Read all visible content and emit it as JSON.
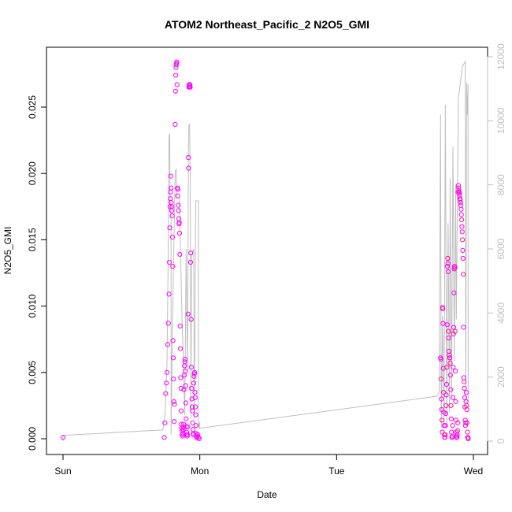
{
  "chart_data": {
    "type": "scatter",
    "title": "ATOM2 Northeast_Pacific_2 N2O5_GMI",
    "xlabel": "Date",
    "ylabel": "N2O5_GMI",
    "x_ticks": [
      "Sun",
      "Mon",
      "Tue",
      "Wed"
    ],
    "x_range_days": [
      0,
      3.1
    ],
    "ylim": [
      0,
      0.0295
    ],
    "y_ticks": [
      "0.000",
      "0.005",
      "0.010",
      "0.015",
      "0.020",
      "0.025"
    ],
    "secondary_y": {
      "label": "",
      "ylim": [
        0,
        12300
      ],
      "ticks": [
        "0",
        "2000",
        "4000",
        "6000",
        "8000",
        "10000",
        "12000"
      ],
      "color": "#bfbfbf"
    },
    "grid": false,
    "colors": {
      "points": "#ff00ff",
      "points_alt": "#ff1493",
      "line": "#bfbfbf"
    },
    "series": [
      {
        "marker": "open-circle",
        "axis": "left",
        "points": [
          [
            0.0,
            0.0001
          ],
          [
            0.74,
            0.0001
          ],
          [
            0.745,
            0.0012
          ],
          [
            0.75,
            0.0034
          ],
          [
            0.755,
            0.0042
          ],
          [
            0.76,
            0.005
          ],
          [
            0.765,
            0.0071
          ],
          [
            0.77,
            0.0087
          ],
          [
            0.775,
            0.0109
          ],
          [
            0.778,
            0.0133
          ],
          [
            0.78,
            0.0159
          ],
          [
            0.782,
            0.0175
          ],
          [
            0.784,
            0.0181
          ],
          [
            0.786,
            0.0186
          ],
          [
            0.788,
            0.0198
          ],
          [
            0.79,
            0.0189
          ],
          [
            0.792,
            0.0178
          ],
          [
            0.794,
            0.0172
          ],
          [
            0.796,
            0.0175
          ],
          [
            0.798,
            0.0168
          ],
          [
            0.8,
            0.0152
          ],
          [
            0.802,
            0.013
          ],
          [
            0.804,
            0.0074
          ],
          [
            0.806,
            0.0061
          ],
          [
            0.808,
            0.0045
          ],
          [
            0.81,
            0.0028
          ],
          [
            0.812,
            0.0013
          ],
          [
            0.815,
            0.0026
          ],
          [
            0.82,
            0.0237
          ],
          [
            0.822,
            0.0262
          ],
          [
            0.824,
            0.0274
          ],
          [
            0.826,
            0.028
          ],
          [
            0.828,
            0.0282
          ],
          [
            0.83,
            0.0283
          ],
          [
            0.832,
            0.0284
          ],
          [
            0.834,
            0.0267
          ],
          [
            0.836,
            0.0189
          ],
          [
            0.838,
            0.0183
          ],
          [
            0.84,
            0.0188
          ],
          [
            0.842,
            0.0176
          ],
          [
            0.844,
            0.0172
          ],
          [
            0.846,
            0.0166
          ],
          [
            0.848,
            0.0162
          ],
          [
            0.85,
            0.0163
          ],
          [
            0.852,
            0.0155
          ],
          [
            0.854,
            0.0139
          ],
          [
            0.856,
            0.0085
          ],
          [
            0.858,
            0.0068
          ],
          [
            0.86,
            0.0046
          ],
          [
            0.862,
            0.0038
          ],
          [
            0.864,
            0.0021
          ],
          [
            0.866,
            0.0011
          ],
          [
            0.868,
            0.0008
          ],
          [
            0.87,
            0.0006
          ],
          [
            0.872,
            0.0003
          ],
          [
            0.874,
            0.0002
          ],
          [
            0.876,
            0.0004
          ],
          [
            0.878,
            0.0007
          ],
          [
            0.88,
            0.0009
          ],
          [
            0.882,
            0.0011
          ],
          [
            0.884,
            0.0037
          ],
          [
            0.886,
            0.0048
          ],
          [
            0.888,
            0.0055
          ],
          [
            0.89,
            0.0058
          ],
          [
            0.892,
            0.006
          ],
          [
            0.894,
            0.0051
          ],
          [
            0.896,
            0.004
          ],
          [
            0.898,
            0.0027
          ],
          [
            0.9,
            0.0015
          ],
          [
            0.902,
            0.0009
          ],
          [
            0.904,
            0.0005
          ],
          [
            0.906,
            0.0003
          ],
          [
            0.908,
            0.0002
          ],
          [
            0.91,
            0.0003
          ],
          [
            0.912,
            0.0009
          ],
          [
            0.914,
            0.0094
          ],
          [
            0.916,
            0.0212
          ],
          [
            0.918,
            0.0204
          ],
          [
            0.92,
            0.0265
          ],
          [
            0.922,
            0.0267
          ],
          [
            0.924,
            0.0266
          ],
          [
            0.926,
            0.0265
          ],
          [
            0.928,
            0.0267
          ],
          [
            0.93,
            0.0265
          ],
          [
            0.932,
            0.0133
          ],
          [
            0.934,
            0.014
          ],
          [
            0.936,
            0.009
          ],
          [
            0.938,
            0.0054
          ],
          [
            0.94,
            0.0038
          ],
          [
            0.942,
            0.003
          ],
          [
            0.944,
            0.0024
          ],
          [
            0.946,
            0.0021
          ],
          [
            0.948,
            0.0012
          ],
          [
            0.95,
            0.0007
          ],
          [
            0.952,
            0.0004
          ],
          [
            0.954,
            0.0003
          ],
          [
            0.956,
            0.0042
          ],
          [
            0.958,
            0.0047
          ],
          [
            0.96,
            0.0049
          ],
          [
            0.962,
            0.005
          ],
          [
            0.964,
            0.0035
          ],
          [
            0.966,
            0.0031
          ],
          [
            0.968,
            0.0024
          ],
          [
            0.97,
            0.0018
          ],
          [
            0.972,
            0.001
          ],
          [
            0.974,
            0.0004
          ],
          [
            0.976,
            0.0001
          ],
          [
            0.978,
            0.0001
          ],
          [
            0.98,
            0.0002
          ],
          [
            0.985,
            0.0003
          ],
          [
            0.99,
            0.0001
          ],
          [
            0.995,
            0.0
          ],
          [
            2.76,
            0.0061
          ],
          [
            2.762,
            0.006
          ],
          [
            2.764,
            0.0045
          ],
          [
            2.766,
            0.003
          ],
          [
            2.768,
            0.0022
          ],
          [
            2.77,
            0.0014
          ],
          [
            2.772,
            0.0005
          ],
          [
            2.774,
            0.0099
          ],
          [
            2.776,
            0.0098
          ],
          [
            2.778,
            0.0087
          ],
          [
            2.78,
            0.0053
          ],
          [
            2.782,
            0.0035
          ],
          [
            2.784,
            0.002
          ],
          [
            2.786,
            0.001
          ],
          [
            2.788,
            0.0003
          ],
          [
            2.79,
            0.0001
          ],
          [
            2.792,
            0.0001
          ],
          [
            2.794,
            0.0003
          ],
          [
            2.796,
            0.001
          ],
          [
            2.798,
            0.0019
          ],
          [
            2.8,
            0.0025
          ],
          [
            2.802,
            0.0033
          ],
          [
            2.804,
            0.0041
          ],
          [
            2.806,
            0.0054
          ],
          [
            2.808,
            0.0086
          ],
          [
            2.81,
            0.013
          ],
          [
            2.812,
            0.0136
          ],
          [
            2.814,
            0.0132
          ],
          [
            2.816,
            0.0126
          ],
          [
            2.818,
            0.0081
          ],
          [
            2.82,
            0.0076
          ],
          [
            2.822,
            0.0066
          ],
          [
            2.824,
            0.0063
          ],
          [
            2.826,
            0.0061
          ],
          [
            2.828,
            0.0061
          ],
          [
            2.83,
            0.0057
          ],
          [
            2.832,
            0.0048
          ],
          [
            2.834,
            0.0037
          ],
          [
            2.836,
            0.0025
          ],
          [
            2.838,
            0.0015
          ],
          [
            2.84,
            0.0005
          ],
          [
            2.842,
            0.0001
          ],
          [
            2.844,
            0.0001
          ],
          [
            2.846,
            0.0002
          ],
          [
            2.848,
            0.001
          ],
          [
            2.85,
            0.0031
          ],
          [
            2.852,
            0.0054
          ],
          [
            2.854,
            0.0079
          ],
          [
            2.856,
            0.0084
          ],
          [
            2.858,
            0.011
          ],
          [
            2.86,
            0.0128
          ],
          [
            2.862,
            0.013
          ],
          [
            2.864,
            0.0129
          ],
          [
            2.866,
            0.0081
          ],
          [
            2.868,
            0.0051
          ],
          [
            2.87,
            0.0028
          ],
          [
            2.872,
            0.0014
          ],
          [
            2.874,
            0.0005
          ],
          [
            2.876,
            0.0002
          ],
          [
            2.878,
            0.0001
          ],
          [
            2.88,
            0.0001
          ],
          [
            2.882,
            0.0003
          ],
          [
            2.884,
            0.0006
          ],
          [
            2.886,
            0.0012
          ],
          [
            2.888,
            0.0186
          ],
          [
            2.89,
            0.0191
          ],
          [
            2.892,
            0.0189
          ],
          [
            2.894,
            0.0187
          ],
          [
            2.896,
            0.0186
          ],
          [
            2.898,
            0.0185
          ],
          [
            2.9,
            0.0183
          ],
          [
            2.902,
            0.0181
          ],
          [
            2.904,
            0.018
          ],
          [
            2.906,
            0.0178
          ],
          [
            2.908,
            0.0176
          ],
          [
            2.91,
            0.0173
          ],
          [
            2.912,
            0.0169
          ],
          [
            2.914,
            0.0165
          ],
          [
            2.916,
            0.016
          ],
          [
            2.918,
            0.0156
          ],
          [
            2.92,
            0.015
          ],
          [
            2.922,
            0.0142
          ],
          [
            2.924,
            0.0136
          ],
          [
            2.926,
            0.0124
          ],
          [
            2.928,
            0.0084
          ],
          [
            2.93,
            0.0046
          ],
          [
            2.932,
            0.0043
          ],
          [
            2.934,
            0.0038
          ],
          [
            2.936,
            0.0031
          ],
          [
            2.938,
            0.0024
          ],
          [
            2.94,
            0.0014
          ],
          [
            2.942,
            0.001
          ],
          [
            2.944,
            0.0012
          ],
          [
            2.946,
            0.0028
          ],
          [
            2.948,
            0.0035
          ],
          [
            2.95,
            0.0025
          ],
          [
            2.952,
            0.0022
          ],
          [
            2.954,
            0.0012
          ],
          [
            2.956,
            0.0005
          ],
          [
            2.958,
            0.0001
          ],
          [
            2.96,
            0.0001
          ],
          [
            2.962,
            0.0
          ]
        ]
      },
      {
        "marker": "line",
        "axis": "right",
        "points": [
          [
            0.0,
            0
          ],
          [
            0.0,
            180
          ],
          [
            0.73,
            350
          ],
          [
            0.745,
            800
          ],
          [
            0.76,
            2400
          ],
          [
            0.768,
            5500
          ],
          [
            0.775,
            9500
          ],
          [
            0.78,
            9600
          ],
          [
            0.782,
            7600
          ],
          [
            0.79,
            7000
          ],
          [
            0.79,
            200
          ],
          [
            0.8,
            3500
          ],
          [
            0.82,
            8400
          ],
          [
            0.828,
            8500
          ],
          [
            0.83,
            7600
          ],
          [
            0.85,
            7600
          ],
          [
            0.87,
            3800
          ],
          [
            0.88,
            2500
          ],
          [
            0.89,
            800
          ],
          [
            0.9,
            6000
          ],
          [
            0.91,
            2200
          ],
          [
            0.918,
            9800
          ],
          [
            0.925,
            9900
          ],
          [
            0.93,
            8300
          ],
          [
            0.935,
            700
          ],
          [
            0.94,
            5800
          ],
          [
            0.955,
            6000
          ],
          [
            0.96,
            700
          ],
          [
            0.97,
            7500
          ],
          [
            0.99,
            7500
          ],
          [
            0.99,
            400
          ],
          [
            1.0,
            600
          ],
          [
            1.0,
            400
          ],
          [
            2.73,
            1400
          ],
          [
            2.75,
            1500
          ],
          [
            2.76,
            10200
          ],
          [
            2.765,
            400
          ],
          [
            2.775,
            3900
          ],
          [
            2.785,
            500
          ],
          [
            2.795,
            10500
          ],
          [
            2.805,
            400
          ],
          [
            2.815,
            6800
          ],
          [
            2.825,
            900
          ],
          [
            2.83,
            8200
          ],
          [
            2.84,
            1300
          ],
          [
            2.85,
            9200
          ],
          [
            2.86,
            2500
          ],
          [
            2.87,
            8000
          ],
          [
            2.875,
            3800
          ],
          [
            2.89,
            10700
          ],
          [
            2.92,
            11700
          ],
          [
            2.94,
            11850
          ],
          [
            2.945,
            1200
          ],
          [
            2.95,
            11200
          ],
          [
            2.955,
            10200
          ],
          [
            2.96,
            11150
          ],
          [
            2.962,
            1200
          ]
        ]
      }
    ]
  }
}
